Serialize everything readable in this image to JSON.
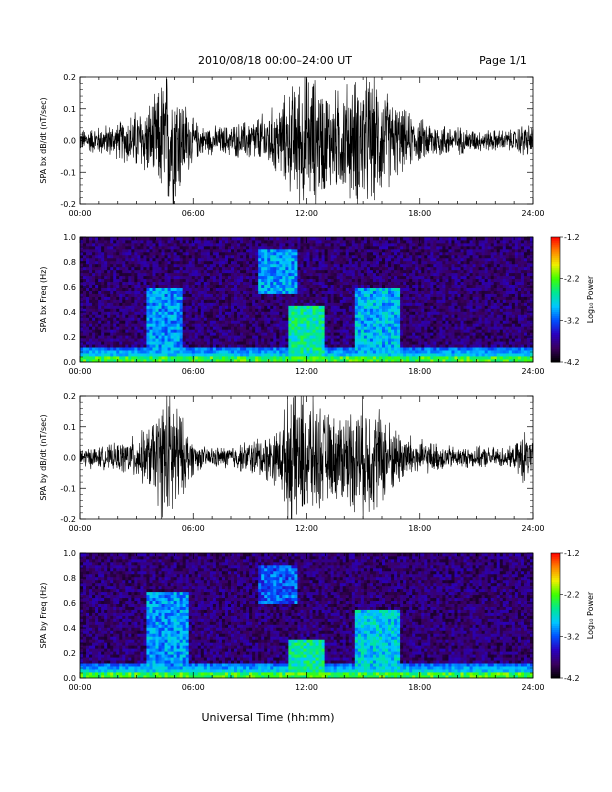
{
  "header": {
    "title": "2010/08/18  00:00–24:00 UT",
    "page": "Page 1/1"
  },
  "x_axis_label": "Universal Time (hh:mm)",
  "time_ticks": [
    "00:00",
    "06:00",
    "12:00",
    "18:00",
    "24:00"
  ],
  "colorbar": {
    "label": "Log₁₀ Power",
    "ticks": [
      "-1.2",
      "-2.2",
      "-3.2",
      "-4.2"
    ],
    "range": [
      -4.2,
      -1.2
    ],
    "palette": [
      "#000000",
      "#3a0060",
      "#2a00c0",
      "#0050ff",
      "#00c8ff",
      "#00e890",
      "#40ff00",
      "#f0f000",
      "#ff8000",
      "#ff0000"
    ]
  },
  "chart_data": [
    {
      "type": "line",
      "id": "bx_dbdt",
      "ylabel": "SPA bx dB/dt (nT/sec)",
      "xlim": [
        0,
        24
      ],
      "ylim": [
        -0.2,
        0.2
      ],
      "yticks": [
        "0.2",
        "0.1",
        "0.0",
        "-0.1",
        "-0.2"
      ],
      "line_color": "#000000",
      "amplitude_envelope": {
        "x_hours": [
          0,
          1,
          2,
          2.8,
          3.5,
          4.0,
          4.5,
          5.0,
          5.5,
          6.0,
          6.5,
          7.5,
          8.5,
          9.5,
          10.5,
          11.2,
          11.8,
          12.5,
          13.0,
          13.5,
          14.0,
          14.5,
          15.0,
          15.5,
          16.0,
          16.5,
          17.0,
          18.0,
          19.0,
          20.0,
          21.0,
          22.0,
          23.0,
          23.5,
          24.0
        ],
        "amplitude": [
          0.03,
          0.04,
          0.05,
          0.08,
          0.1,
          0.12,
          0.2,
          0.2,
          0.12,
          0.06,
          0.04,
          0.04,
          0.05,
          0.07,
          0.1,
          0.15,
          0.2,
          0.18,
          0.15,
          0.14,
          0.16,
          0.17,
          0.2,
          0.18,
          0.16,
          0.12,
          0.09,
          0.06,
          0.05,
          0.04,
          0.03,
          0.03,
          0.03,
          0.05,
          0.04
        ]
      }
    },
    {
      "type": "heatmap",
      "id": "bx_freq",
      "ylabel": "SPA bx Freq (Hz)",
      "xlim": [
        0,
        24
      ],
      "ylim": [
        0,
        1.0
      ],
      "yticks": [
        "1.0",
        "0.8",
        "0.6",
        "0.4",
        "0.2",
        "0.0"
      ],
      "value_units": "Log10 Power",
      "background_level": -3.8,
      "features": [
        {
          "x_range": [
            0,
            24
          ],
          "f_range": [
            0,
            0.05
          ],
          "level": -2.3,
          "desc": "low-frequency band"
        },
        {
          "x_range": [
            3.5,
            5.5
          ],
          "f_range": [
            0.1,
            0.6
          ],
          "level": -3.0
        },
        {
          "x_range": [
            9.5,
            11.5
          ],
          "f_range": [
            0.55,
            0.9
          ],
          "level": -3.0
        },
        {
          "x_range": [
            11.0,
            13.0
          ],
          "f_range": [
            0.0,
            0.45
          ],
          "level": -2.6
        },
        {
          "x_range": [
            14.5,
            17.0
          ],
          "f_range": [
            0.0,
            0.6
          ],
          "level": -2.9
        }
      ]
    },
    {
      "type": "line",
      "id": "by_dbdt",
      "ylabel": "SPA by dB/dt (nT/sec)",
      "xlim": [
        0,
        24
      ],
      "ylim": [
        -0.2,
        0.2
      ],
      "yticks": [
        "0.2",
        "0.1",
        "0.0",
        "-0.1",
        "-0.2"
      ],
      "line_color": "#000000",
      "amplitude_envelope": {
        "x_hours": [
          0,
          1,
          2,
          2.8,
          3.5,
          4.0,
          4.5,
          5.0,
          5.5,
          6.0,
          6.5,
          7.5,
          8.5,
          9.5,
          10.5,
          11.2,
          11.8,
          12.5,
          13.0,
          13.5,
          14.0,
          14.5,
          15.0,
          15.5,
          16.0,
          16.5,
          17.0,
          18.0,
          19.0,
          20.0,
          21.0,
          22.0,
          23.0,
          23.5,
          24.0
        ],
        "amplitude": [
          0.03,
          0.03,
          0.04,
          0.06,
          0.08,
          0.12,
          0.2,
          0.2,
          0.1,
          0.05,
          0.03,
          0.03,
          0.04,
          0.06,
          0.08,
          0.2,
          0.2,
          0.16,
          0.13,
          0.12,
          0.14,
          0.15,
          0.18,
          0.16,
          0.14,
          0.1,
          0.08,
          0.05,
          0.04,
          0.03,
          0.03,
          0.03,
          0.03,
          0.08,
          0.04
        ]
      }
    },
    {
      "type": "heatmap",
      "id": "by_freq",
      "ylabel": "SPA by Freq (Hz)",
      "xlim": [
        0,
        24
      ],
      "ylim": [
        0,
        1.0
      ],
      "yticks": [
        "1.0",
        "0.8",
        "0.6",
        "0.4",
        "0.2",
        "0.0"
      ],
      "value_units": "Log10 Power",
      "background_level": -3.8,
      "features": [
        {
          "x_range": [
            0,
            24
          ],
          "f_range": [
            0,
            0.05
          ],
          "level": -2.3,
          "desc": "low-frequency band"
        },
        {
          "x_range": [
            3.5,
            5.8
          ],
          "f_range": [
            0.05,
            0.7
          ],
          "level": -3.0
        },
        {
          "x_range": [
            9.5,
            11.5
          ],
          "f_range": [
            0.6,
            0.9
          ],
          "level": -3.2
        },
        {
          "x_range": [
            11.0,
            13.0
          ],
          "f_range": [
            0.0,
            0.3
          ],
          "level": -2.6
        },
        {
          "x_range": [
            14.5,
            17.0
          ],
          "f_range": [
            0.0,
            0.55
          ],
          "level": -2.8
        }
      ]
    }
  ]
}
